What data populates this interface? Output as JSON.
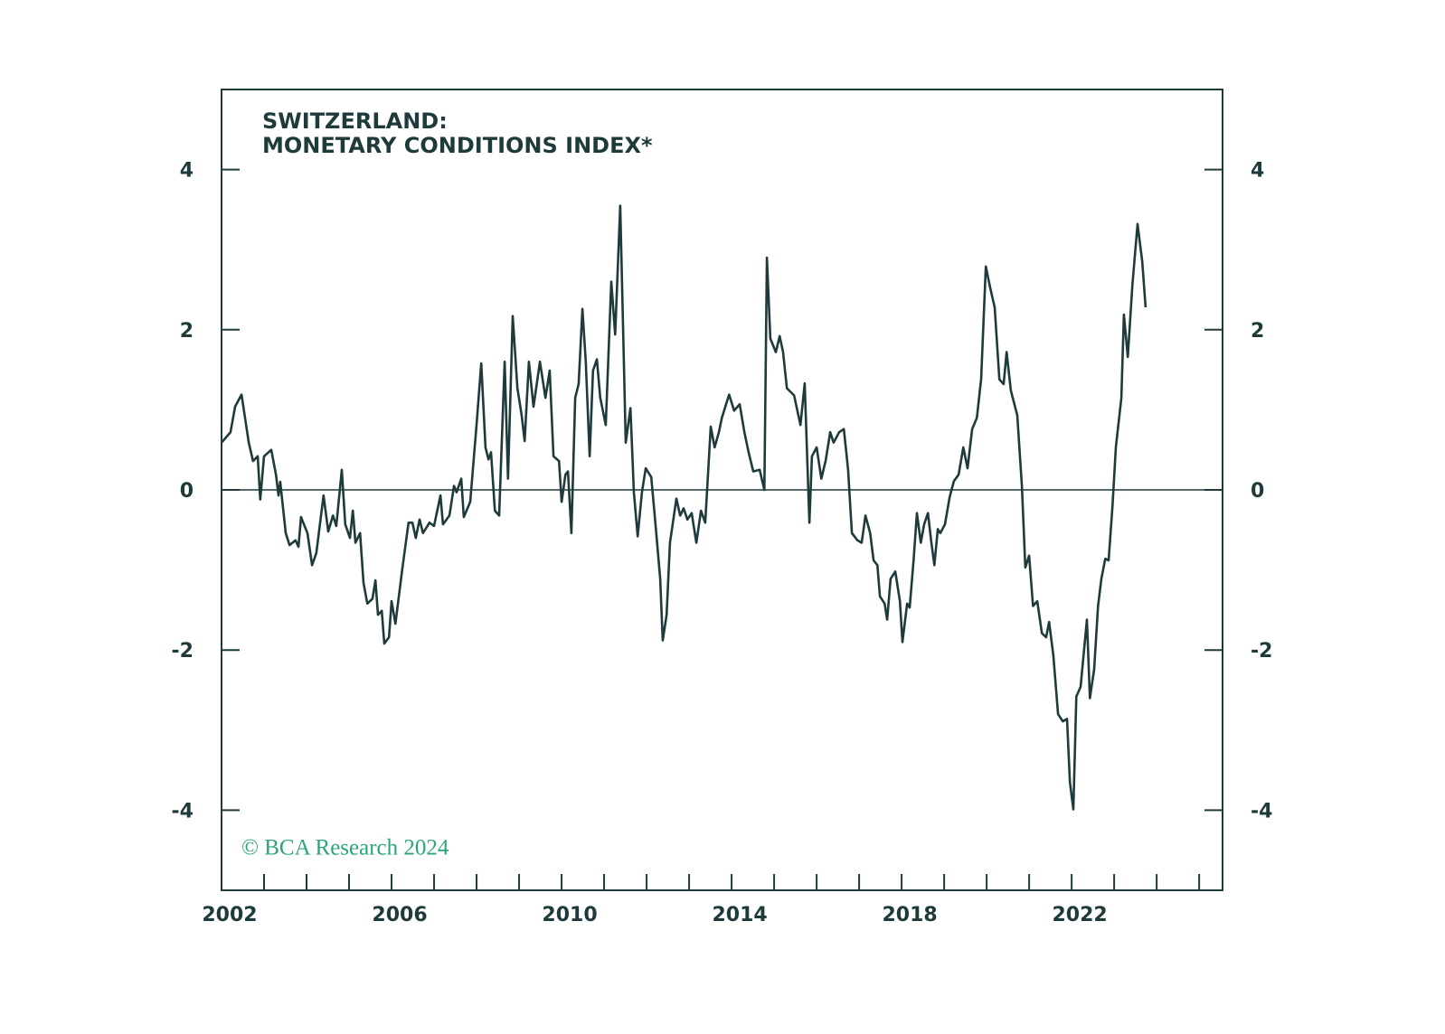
{
  "chart_data": {
    "type": "line",
    "title": [
      "SWITZERLAND:",
      "MONETARY CONDITIONS INDEX*"
    ],
    "annotation": "© BCA Research 2024",
    "color": "#1f3a3a",
    "xlim": [
      2002,
      2025.55
    ],
    "xticks": [
      2002,
      2006,
      2010,
      2014,
      2018,
      2022
    ],
    "xticks_minor": [
      2003,
      2004,
      2005,
      2007,
      2008,
      2009,
      2011,
      2012,
      2013,
      2015,
      2016,
      2017,
      2019,
      2020,
      2021,
      2023,
      2024,
      2025
    ],
    "ylim": [
      -5,
      5
    ],
    "yticks": [
      -4,
      -2,
      0,
      2,
      4
    ],
    "y2lim": [
      -5,
      5
    ],
    "y2ticks": [
      -4,
      -2,
      0,
      2,
      4
    ],
    "zero_line": true,
    "x": [
      2002.0,
      2002.21,
      2002.32,
      2002.47,
      2002.64,
      2002.74,
      2002.85,
      2002.91,
      2003.0,
      2003.17,
      2003.28,
      2003.34,
      2003.38,
      2003.51,
      2003.6,
      2003.74,
      2003.81,
      2003.87,
      2004.02,
      2004.13,
      2004.23,
      2004.4,
      2004.51,
      2004.62,
      2004.7,
      2004.83,
      2004.91,
      2005.02,
      2005.09,
      2005.15,
      2005.26,
      2005.34,
      2005.43,
      2005.55,
      2005.62,
      2005.68,
      2005.77,
      2005.83,
      2005.94,
      2006.0,
      2006.09,
      2006.26,
      2006.4,
      2006.49,
      2006.57,
      2006.66,
      2006.74,
      2006.89,
      2007.0,
      2007.15,
      2007.21,
      2007.36,
      2007.47,
      2007.53,
      2007.64,
      2007.7,
      2007.85,
      2008.0,
      2008.11,
      2008.21,
      2008.28,
      2008.34,
      2008.43,
      2008.53,
      2008.66,
      2008.74,
      2008.85,
      2008.96,
      2009.06,
      2009.13,
      2009.23,
      2009.34,
      2009.49,
      2009.62,
      2009.72,
      2009.81,
      2009.94,
      2010.0,
      2010.09,
      2010.15,
      2010.23,
      2010.32,
      2010.4,
      2010.49,
      2010.57,
      2010.66,
      2010.74,
      2010.83,
      2010.91,
      2011.04,
      2011.17,
      2011.26,
      2011.38,
      2011.51,
      2011.62,
      2011.7,
      2011.79,
      2011.89,
      2011.98,
      2012.11,
      2012.21,
      2012.32,
      2012.38,
      2012.47,
      2012.55,
      2012.7,
      2012.79,
      2012.87,
      2012.96,
      2013.06,
      2013.17,
      2013.28,
      2013.38,
      2013.51,
      2013.6,
      2013.7,
      2013.77,
      2013.94,
      2014.06,
      2014.19,
      2014.3,
      2014.4,
      2014.51,
      2014.66,
      2014.77,
      2014.83,
      2014.91,
      2015.04,
      2015.13,
      2015.21,
      2015.3,
      2015.47,
      2015.62,
      2015.72,
      2015.83,
      2015.89,
      2016.0,
      2016.11,
      2016.21,
      2016.32,
      2016.4,
      2016.53,
      2016.64,
      2016.74,
      2016.83,
      2016.96,
      2017.06,
      2017.15,
      2017.26,
      2017.34,
      2017.43,
      2017.49,
      2017.6,
      2017.66,
      2017.74,
      2017.85,
      2017.96,
      2018.02,
      2018.13,
      2018.19,
      2018.28,
      2018.36,
      2018.45,
      2018.53,
      2018.62,
      2018.7,
      2018.77,
      2018.85,
      2018.91,
      2019.02,
      2019.13,
      2019.23,
      2019.34,
      2019.45,
      2019.55,
      2019.66,
      2019.77,
      2019.87,
      2019.98,
      2020.09,
      2020.19,
      2020.3,
      2020.4,
      2020.47,
      2020.57,
      2020.72,
      2020.83,
      2020.91,
      2021.0,
      2021.09,
      2021.19,
      2021.3,
      2021.4,
      2021.47,
      2021.57,
      2021.68,
      2021.79,
      2021.89,
      2021.96,
      2022.04,
      2022.11,
      2022.21,
      2022.36,
      2022.43,
      2022.53,
      2022.62,
      2022.7,
      2022.79,
      2022.87,
      2022.96,
      2023.04,
      2023.17,
      2023.23,
      2023.32,
      2023.43,
      2023.55,
      2023.66,
      2023.74
    ],
    "values": [
      0.59,
      0.72,
      1.04,
      1.19,
      0.59,
      0.36,
      0.42,
      -0.12,
      0.42,
      0.5,
      0.19,
      -0.07,
      0.1,
      -0.54,
      -0.69,
      -0.63,
      -0.71,
      -0.34,
      -0.54,
      -0.94,
      -0.79,
      -0.07,
      -0.52,
      -0.32,
      -0.45,
      0.25,
      -0.43,
      -0.6,
      -0.26,
      -0.66,
      -0.54,
      -1.16,
      -1.42,
      -1.36,
      -1.13,
      -1.56,
      -1.51,
      -1.92,
      -1.84,
      -1.39,
      -1.67,
      -0.96,
      -0.41,
      -0.41,
      -0.6,
      -0.37,
      -0.54,
      -0.41,
      -0.45,
      -0.07,
      -0.43,
      -0.32,
      0.05,
      -0.03,
      0.14,
      -0.34,
      -0.15,
      0.81,
      1.58,
      0.53,
      0.38,
      0.47,
      -0.26,
      -0.32,
      1.6,
      0.14,
      2.17,
      1.27,
      0.93,
      0.61,
      1.6,
      1.04,
      1.6,
      1.15,
      1.49,
      0.42,
      0.36,
      -0.15,
      0.19,
      0.23,
      -0.54,
      1.15,
      1.32,
      2.26,
      1.6,
      0.42,
      1.49,
      1.63,
      1.15,
      0.81,
      2.6,
      1.94,
      3.55,
      0.59,
      1.02,
      -0.03,
      -0.58,
      -0.03,
      0.27,
      0.16,
      -0.43,
      -1.11,
      -1.88,
      -1.56,
      -0.66,
      -0.11,
      -0.32,
      -0.23,
      -0.37,
      -0.29,
      -0.66,
      -0.26,
      -0.41,
      0.79,
      0.53,
      0.72,
      0.9,
      1.19,
      0.99,
      1.07,
      0.72,
      0.47,
      0.23,
      0.25,
      0.0,
      2.9,
      1.89,
      1.72,
      1.92,
      1.72,
      1.27,
      1.18,
      0.81,
      1.33,
      -0.41,
      0.42,
      0.53,
      0.14,
      0.36,
      0.72,
      0.59,
      0.72,
      0.76,
      0.25,
      -0.54,
      -0.63,
      -0.66,
      -0.32,
      -0.54,
      -0.88,
      -0.94,
      -1.33,
      -1.42,
      -1.62,
      -1.11,
      -1.02,
      -1.39,
      -1.9,
      -1.42,
      -1.47,
      -0.88,
      -0.29,
      -0.66,
      -0.43,
      -0.29,
      -0.66,
      -0.94,
      -0.49,
      -0.54,
      -0.43,
      -0.09,
      0.11,
      0.19,
      0.53,
      0.27,
      0.76,
      0.9,
      1.38,
      2.79,
      2.51,
      2.28,
      1.38,
      1.32,
      1.72,
      1.24,
      0.93,
      0.05,
      -0.97,
      -0.82,
      -1.45,
      -1.39,
      -1.79,
      -1.84,
      -1.65,
      -2.07,
      -2.8,
      -2.89,
      -2.86,
      -3.65,
      -3.99,
      -2.58,
      -2.46,
      -1.62,
      -2.6,
      -2.24,
      -1.45,
      -1.11,
      -0.86,
      -0.88,
      -0.2,
      0.53,
      1.15,
      2.19,
      1.66,
      2.56,
      3.32,
      2.85,
      2.28
    ]
  }
}
